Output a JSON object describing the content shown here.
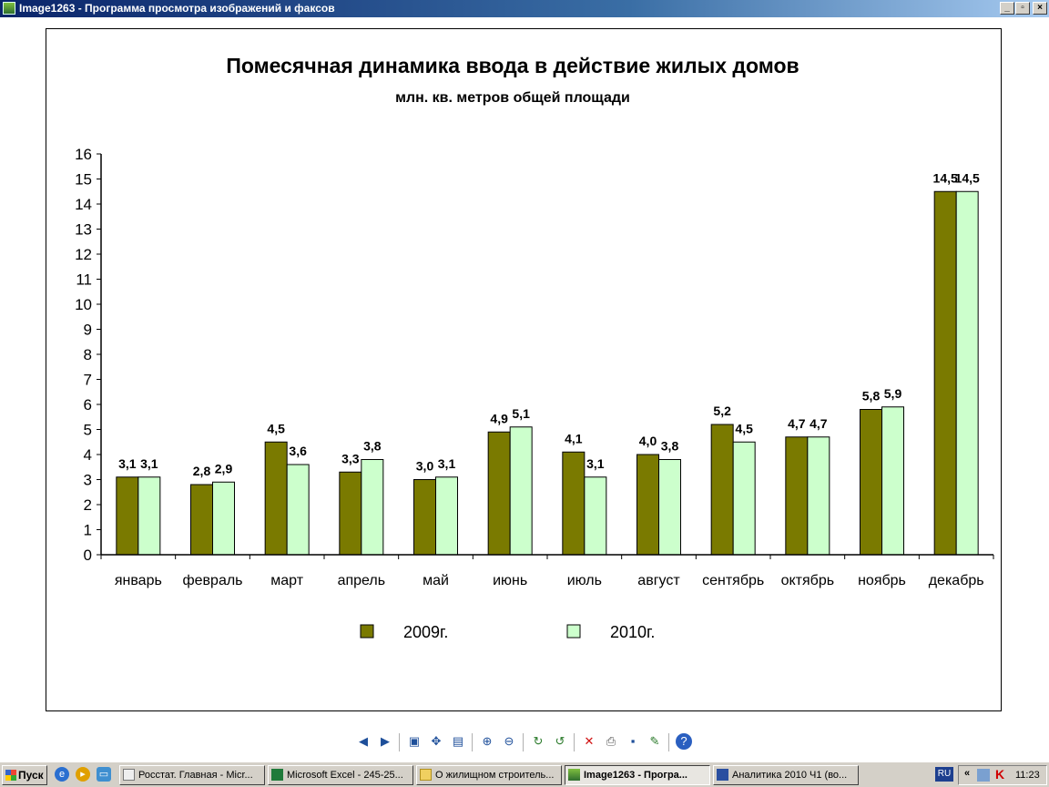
{
  "window": {
    "title": "Image1263 - Программа просмотра изображений и факсов",
    "minimize_label": "_",
    "maximize_label": "▫",
    "close_label": "×"
  },
  "chart_data": {
    "type": "bar",
    "title": "Помесячная динамика ввода в действие жилых домов",
    "subtitle": "млн. кв. метров общей площади",
    "categories": [
      "январь",
      "февраль",
      "март",
      "апрель",
      "май",
      "июнь",
      "июль",
      "август",
      "сентябрь",
      "октябрь",
      "ноябрь",
      "декабрь"
    ],
    "series": [
      {
        "name": "2009г.",
        "color": "#7a7a00",
        "values": [
          3.1,
          2.8,
          4.5,
          3.3,
          3.0,
          4.9,
          4.1,
          4.0,
          5.2,
          4.7,
          5.8,
          14.5
        ],
        "labels": [
          "3,1",
          "2,8",
          "4,5",
          "3,3",
          "3,0",
          "4,9",
          "4,1",
          "4,0",
          "5,2",
          "4,7",
          "5,8",
          "14,5"
        ]
      },
      {
        "name": "2010г.",
        "color": "#ccffcc",
        "values": [
          3.1,
          2.9,
          3.6,
          3.8,
          3.1,
          5.1,
          3.1,
          3.8,
          4.5,
          4.7,
          5.9,
          14.5
        ],
        "labels": [
          "3,1",
          "2,9",
          "3,6",
          "3,8",
          "3,1",
          "5,1",
          "3,1",
          "3,8",
          "4,5",
          "4,7",
          "5,9",
          "14,5"
        ]
      }
    ],
    "ylim": [
      0,
      16
    ],
    "yticks": [
      "0",
      "1",
      "2",
      "3",
      "4",
      "5",
      "6",
      "7",
      "8",
      "9",
      "10",
      "11",
      "12",
      "13",
      "14",
      "15",
      "16"
    ],
    "grid": false,
    "legend_position": "bottom"
  },
  "toolbar": {
    "icons": [
      "previous-icon",
      "next-icon",
      "best-fit-icon",
      "actual-size-icon",
      "slideshow-icon",
      "zoom-in-icon",
      "zoom-out-icon",
      "rotate-clockwise-icon",
      "rotate-counterclockwise-icon",
      "delete-icon",
      "print-icon",
      "save-icon",
      "edit-icon",
      "help-icon"
    ]
  },
  "taskbar": {
    "start_label": "Пуск",
    "tasks": [
      {
        "label": "Росстат. Главная - Micr...",
        "icon": "ie-icon",
        "active": false
      },
      {
        "label": "Microsoft Excel - 245-25...",
        "icon": "excel-icon",
        "active": false
      },
      {
        "label": "О жилищном строитель...",
        "icon": "folder-icon",
        "active": false
      },
      {
        "label": "Image1263 - Програ...",
        "icon": "image-viewer-icon",
        "active": true
      },
      {
        "label": "Аналитика 2010 Ч1 (во...",
        "icon": "word-icon",
        "active": false
      }
    ],
    "language": "RU",
    "chevron": "«",
    "clock": "11:23"
  }
}
